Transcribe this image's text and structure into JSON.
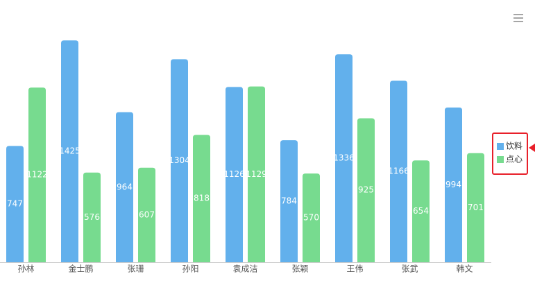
{
  "chart_data": {
    "type": "bar",
    "categories": [
      "孙林",
      "金士鹏",
      "张珊",
      "孙阳",
      "袁成洁",
      "张颖",
      "王伟",
      "张武",
      "韩文"
    ],
    "series": [
      {
        "name": "饮料",
        "color": "#62b0ec",
        "values": [
          747,
          1425,
          964,
          1304,
          1126,
          784,
          1336,
          1166,
          994
        ]
      },
      {
        "name": "点心",
        "color": "#77db8f",
        "values": [
          1122,
          576,
          607,
          818,
          1129,
          570,
          925,
          654,
          701
        ]
      }
    ],
    "ylim": [
      0,
      1600
    ],
    "legend": "right"
  }
}
